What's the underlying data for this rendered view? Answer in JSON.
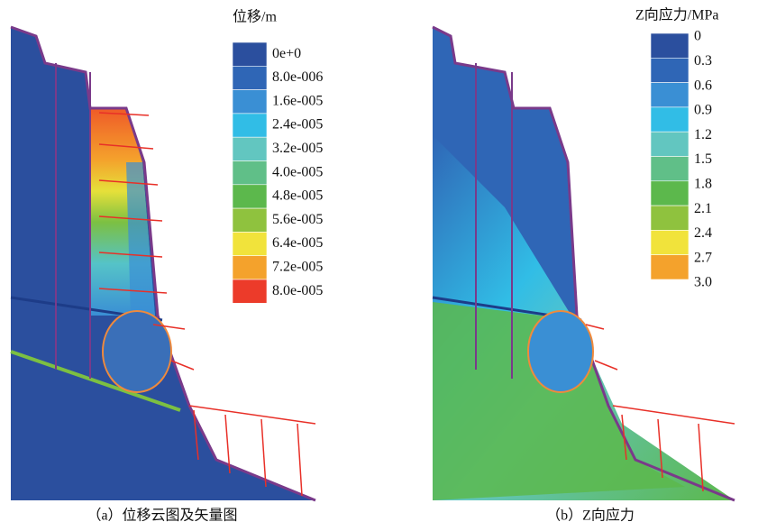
{
  "panels": [
    {
      "legend": {
        "title": "位移/m",
        "labels": [
          "0e+0",
          "8.0e-006",
          "1.6e-005",
          "2.4e-005",
          "3.2e-005",
          "4.0e-005",
          "4.8e-005",
          "5.6e-005",
          "6.4e-005",
          "7.2e-005",
          "8.0e-005"
        ],
        "colors": [
          "#2b4f9e",
          "#2f66b6",
          "#3a8fd4",
          "#31bde6",
          "#62c6c0",
          "#60bf88",
          "#5cb84c",
          "#8fc23e",
          "#f1e33b",
          "#f4a22c",
          "#ec3b2a"
        ]
      },
      "caption": "（a）位移云图及矢量图"
    },
    {
      "legend": {
        "title": "Z向应力/MPa",
        "labels": [
          "0",
          "0.3",
          "0.6",
          "0.9",
          "1.2",
          "1.5",
          "1.8",
          "2.1",
          "2.4",
          "2.7",
          "3.0"
        ],
        "colors": [
          "#2b4f9e",
          "#2f66b6",
          "#3a8fd4",
          "#31bde6",
          "#62c6c0",
          "#60bf88",
          "#5cb84c",
          "#8fc23e",
          "#f1e33b",
          "#f4a22c",
          "#ec3b2a"
        ]
      },
      "caption": "（b）Z向应力"
    }
  ]
}
